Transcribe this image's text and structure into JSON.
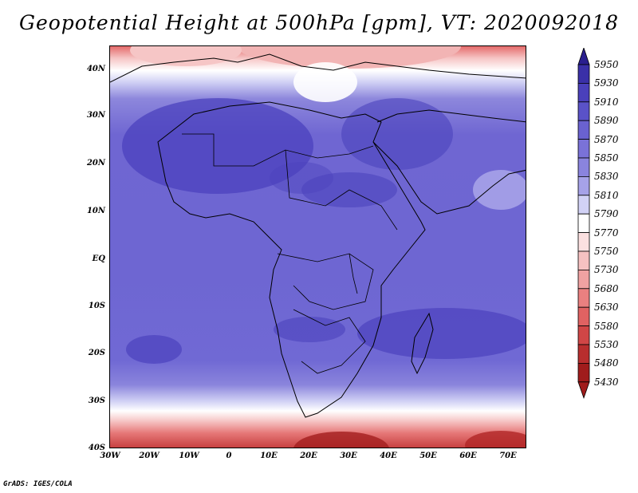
{
  "title": "Geopotential Height at 500hPa [gpm], VT: 2020092018",
  "credit": "GrADS: IGES/COLA",
  "map": {
    "lat_labels": [
      "40N",
      "30N",
      "20N",
      "10N",
      "EQ",
      "10S",
      "20S",
      "30S",
      "40S"
    ],
    "lon_labels": [
      "30W",
      "20W",
      "10W",
      "0",
      "10E",
      "20E",
      "30E",
      "40E",
      "50E",
      "60E",
      "70E"
    ],
    "lon_range": [
      -30,
      75
    ],
    "lat_range": [
      -40,
      45
    ]
  },
  "colorbar": {
    "levels": [
      "5950",
      "5930",
      "5910",
      "5890",
      "5870",
      "5850",
      "5830",
      "5810",
      "5790",
      "5770",
      "5750",
      "5730",
      "5680",
      "5630",
      "5580",
      "5530",
      "5480",
      "5430"
    ],
    "colors": [
      "#2a1f8f",
      "#3a30a8",
      "#4a40bb",
      "#5a52c8",
      "#6a62d0",
      "#7a72d8",
      "#8a84de",
      "#a6a2e8",
      "#d2d2f6",
      "#ffffff",
      "#fbe0e0",
      "#f6c2c2",
      "#f0a2a2",
      "#ea8080",
      "#e06262",
      "#d04646",
      "#b82e2e",
      "#a01c1c"
    ]
  }
}
